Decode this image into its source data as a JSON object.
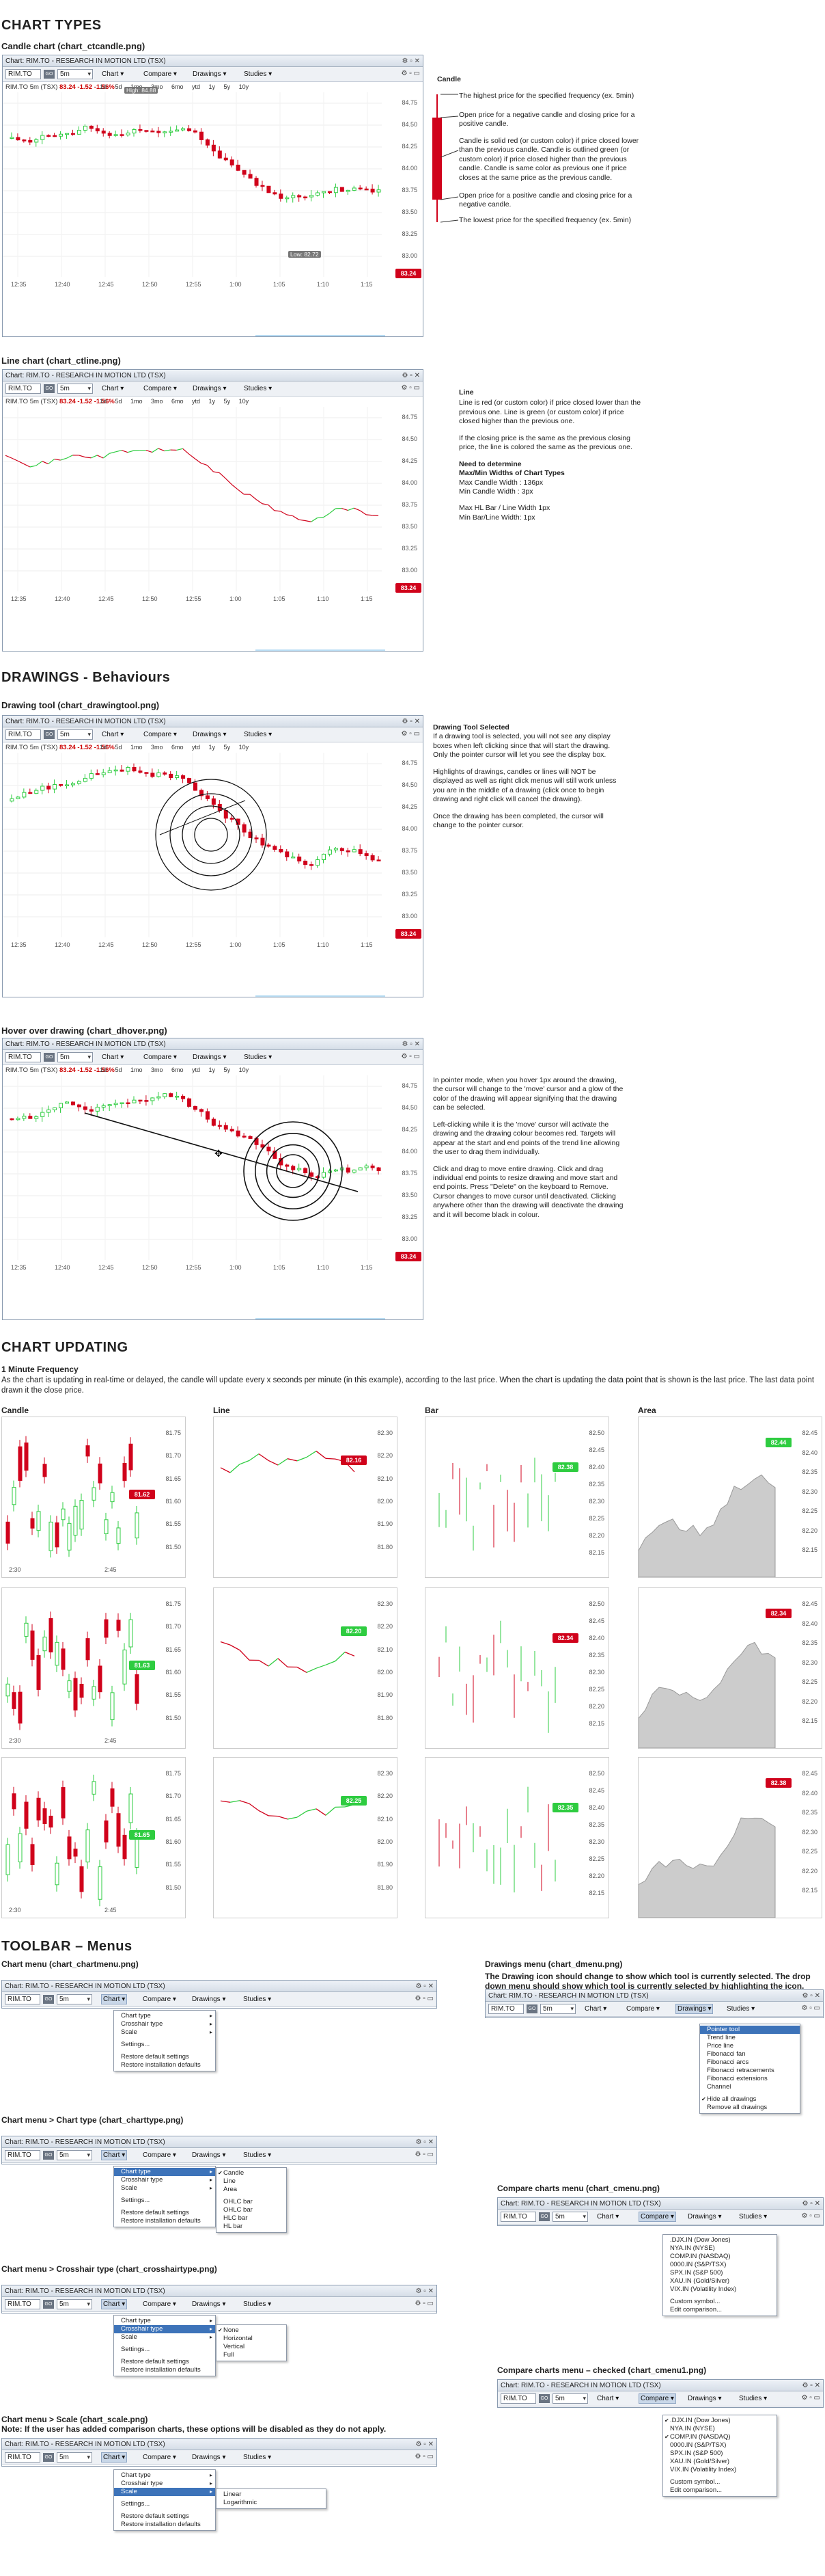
{
  "sections": {
    "chart_types": "CHART TYPES",
    "drawings": "DRAWINGS - Behaviours",
    "updating": "CHART UPDATING",
    "toolbar": "TOOLBAR – Menus"
  },
  "headings": {
    "candle": "Candle chart (chart_ctcandle.png)",
    "line": "Line chart (chart_ctline.png)",
    "drawing_tool": "Drawing tool (chart_drawingtool.png)",
    "hover": "Hover over drawing (chart_dhover.png)",
    "one_minute": "1 Minute Frequency",
    "one_minute_desc": "As the chart is updating in real-time or delayed, the candle will update every x seconds per minute (in this example), according to the last price. When the chart is updating the data point that is shown is the last price. The last data point drawn it the close price.",
    "chart_menu": "Chart menu (chart_chartmenu.png)",
    "charttype": "Chart menu > Chart type (chart_charttype.png)",
    "crosshair": "Chart menu > Crosshair type (chart_crosshairtype.png)",
    "scale": "Chart menu > Scale (chart_scale.png)",
    "scale_note": "Note: If the user has added comparison charts, these options will be disabled as they do not apply.",
    "drawings_menu": "Drawings menu (chart_dmenu.png)",
    "drawings_menu_desc": "The Drawing icon should change to show which tool is currently selected. The drop down menu should show which tool is currently selected by highlighting the icon.",
    "compare_menu": "Compare charts menu (chart_cmenu.png)",
    "compare_checked": "Compare charts menu – checked (chart_cmenu1.png)"
  },
  "window": {
    "title": "Chart: RIM.TO - RESEARCH IN MOTION LTD (TSX)",
    "controls": "⚙ ▫ ✕",
    "symbol": "RIM.TO",
    "go": "GO",
    "period": "5m",
    "menu_chart": "Chart ▾",
    "menu_compare": "Compare ▾",
    "menu_drawings": "Drawings ▾",
    "menu_studies": "Studies ▾",
    "right_icons": "⚙ ▫ ▭",
    "quote_sym": "RIM.TO 5m (TSX)",
    "quote_px": "83.24 -1.52 -1.56%",
    "ranges": "1d 5d 1mo 3mo 6mo ytd 1y 5y 10y"
  },
  "chart_axis": {
    "y": [
      "84.75",
      "84.50",
      "84.25",
      "84.00",
      "83.75",
      "83.50",
      "83.25",
      "83.00"
    ],
    "x": [
      "12:35",
      "12:40",
      "12:45",
      "12:50",
      "12:55",
      "1:00",
      "1:05",
      "1:10",
      "1:15"
    ],
    "last": "83.24",
    "high_label": "High: 84.88",
    "low_label": "Low: 82.72"
  },
  "notes": {
    "candle_title": "Candle",
    "candle_items": [
      "The highest price for the specified frequency (ex. 5min)",
      "Open price for a negative candle and closing price for a positive candle.",
      "Candle is solid red (or custom color) if price closed lower than the previous candle. Candle is outlined green (or custom color) if price closed higher than the previous candle. Candle is same color as previous one if price closes at the same price as the previous candle.",
      "Open price for a positive candle and closing price for a negative candle.",
      "The lowest price for the specified frequency (ex. 5min)"
    ],
    "line_title": "Line",
    "line_p1": "Line is red (or custom color) if price closed lower than the previous one. Line is green (or custom color) if price closed higher than the previous one.",
    "line_p2": "If the closing price is the same as the previous closing price, the line is colored the same as the previous one.",
    "line_need": "Need to determine",
    "line_max_title": "Max/Min Widths of Chart Types",
    "line_max1": "Max Candle Width : 136px",
    "line_min1": "Min Candle Width : 3px",
    "line_max2": "Max HL Bar / Line Width 1px",
    "line_min2": "Min Bar/Line Width: 1px",
    "drawing_title": "Drawing Tool Selected",
    "drawing_p1": "If a drawing tool is selected, you will not see any display boxes when left clicking since that will start the drawing. Only the pointer cursor will let you see the display box.",
    "drawing_p2": "Highlights of drawings, candles or lines will NOT be displayed as well as right click menus will still work unless you are in the middle of a drawing (click once to begin drawing and right click will cancel the drawing).",
    "drawing_p3": "Once the drawing has been completed, the cursor will change to the pointer cursor.",
    "hover_p1": "In pointer mode, when you hover 1px around the drawing, the cursor will change to the 'move' cursor and a glow of the color of the drawing will appear signifying that the drawing can be selected.",
    "hover_p2": "Left-clicking while it is the 'move' cursor will activate the drawing and the drawing colour becomes red. Targets will appear at the start and end points of the trend line allowing the user to drag them individually.",
    "hover_p3": "Click and drag to move entire drawing. Click and drag individual end points to resize drawing and move start and end points. Press \"Delete\" on the keyboard to Remove. Cursor changes to move cursor until deactivated. Clicking anywhere other than the drawing will deactivate the drawing and it will become black in colour."
  },
  "updating": {
    "types": [
      "Candle",
      "Line",
      "Bar",
      "Area"
    ],
    "candle_y": [
      "81.75",
      "81.70",
      "81.65",
      "81.60",
      "81.55",
      "81.50"
    ],
    "line_y": [
      "82.30",
      "82.20",
      "82.10",
      "82.00",
      "81.90",
      "81.80"
    ],
    "bar_y": [
      "82.50",
      "82.45",
      "82.40",
      "82.35",
      "82.30",
      "82.25",
      "82.20",
      "82.15"
    ],
    "area_y": [
      "82.45",
      "82.40",
      "82.35",
      "82.30",
      "82.25",
      "82.20",
      "82.15"
    ],
    "x": [
      "2:30",
      "2:45"
    ],
    "rows": [
      {
        "candle": "81.62",
        "line": "82.16",
        "bar": "82.38",
        "area": "82.44",
        "cg": false,
        "lg": false,
        "bg": true,
        "ag": true
      },
      {
        "candle": "81.63",
        "line": "82.20",
        "bar": "82.34",
        "area": "82.34",
        "cg": true,
        "lg": true,
        "bg": false,
        "ag": false
      },
      {
        "candle": "81.65",
        "line": "82.25",
        "bar": "82.35",
        "area": "82.38",
        "cg": true,
        "lg": true,
        "bg": true,
        "ag": false
      }
    ]
  },
  "menus": {
    "chart": [
      "Chart type",
      "Crosshair type",
      "Scale",
      "",
      "Settings...",
      "",
      "Restore default settings",
      "Restore installation defaults"
    ],
    "charttype": [
      "Candle",
      "Line",
      "Area",
      "",
      "OHLC bar",
      "OHLC bar",
      "HLC bar",
      "HL bar"
    ],
    "crosshair": [
      "None",
      "Horizontal",
      "Vertical",
      "Full"
    ],
    "scale": [
      "Linear",
      "Logarithmic"
    ],
    "drawings": [
      "Pointer tool",
      "Trend line",
      "Price line",
      "Fibonacci fan",
      "Fibonacci arcs",
      "Fibonacci retracements",
      "Fibonacci extensions",
      "Channel",
      "",
      "Hide all drawings",
      "Remove all drawings"
    ],
    "compare": [
      ".DJX.IN (Dow Jones)",
      "NYA.IN (NYSE)",
      "COMP.IN (NASDAQ)",
      "0000.IN (S&P/TSX)",
      "SPX.IN (S&P 500)",
      "XAU.IN (Gold/Silver)",
      "VIX.IN (Volatility Index)",
      "",
      "Custom symbol...",
      "Edit comparison..."
    ]
  },
  "colors": {
    "up": "#2ecc40",
    "down": "#d0021b",
    "accent": "#3d73b9"
  }
}
